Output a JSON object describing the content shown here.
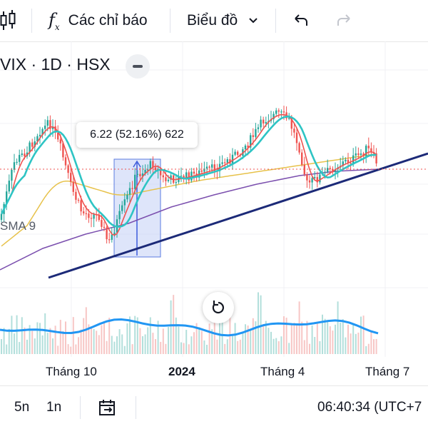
{
  "toolbar": {
    "indicators_label": "Các chỉ báo",
    "chart_label": "Biểu đồ"
  },
  "symbol": {
    "text": "VIX · 1D · HSX"
  },
  "tooltip": {
    "text": "6.22 (52.16%) 622"
  },
  "sma_label": "SMA 9",
  "x_axis": {
    "labels": [
      "Tháng 10",
      "2024",
      "Tháng 4",
      "Tháng 7"
    ]
  },
  "bottom": {
    "range_5y": "5n",
    "range_1y": "1n",
    "clock": "06:40:34 (UTC+7"
  },
  "colors": {
    "up": "#26a69a",
    "down": "#ef5350",
    "sma_fast": "#2ec4c4",
    "sma_mid": "#e7c24b",
    "sma_slow": "#7b4fae",
    "trendline": "#1c2a78",
    "volume_ma": "#2196f3",
    "measure_fill": "#c8d3f7"
  },
  "chart_data": {
    "type": "candlestick",
    "x_tick_labels": [
      "Tháng 10",
      "2024",
      "Tháng 4",
      "Tháng 7"
    ],
    "series": [
      {
        "name": "SMA 9"
      }
    ],
    "annotations": [
      "6.22 (52.16%) 622"
    ]
  }
}
